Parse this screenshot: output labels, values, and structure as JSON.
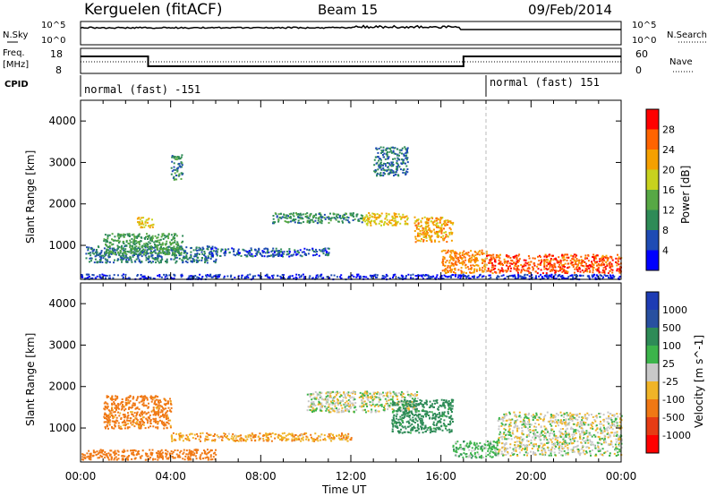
{
  "header": {
    "station": "Kerguelen (fitACF)",
    "beam": "Beam 15",
    "date": "09/Feb/2014"
  },
  "strip_noise": {
    "left_label": "N.Sky",
    "right_label": "N.Search",
    "left_ticks": [
      "10^5",
      "10^0"
    ],
    "right_ticks": [
      "10^5",
      "10^0"
    ]
  },
  "strip_freq": {
    "left_label_1": "Freq.",
    "left_label_2": "[MHz]",
    "right_label": "Nave",
    "left_ticks": [
      "18",
      "8"
    ],
    "right_ticks": [
      "60",
      "0"
    ]
  },
  "cpid": {
    "label": "CPID",
    "segment_1": "normal (fast) -151",
    "segment_2": "normal (fast) 151",
    "switch_hour": 18
  },
  "chart_data": [
    {
      "type": "heatmap",
      "panel": "power",
      "ylabel": "Slant Range [km]",
      "yticks": [
        "1000",
        "2000",
        "3000",
        "4000"
      ],
      "ylim": [
        180,
        4500
      ],
      "xlim": [
        0,
        24
      ],
      "xlabel": "Time UT",
      "xticks": [
        "00:00",
        "04:00",
        "08:00",
        "12:00",
        "16:00",
        "20:00",
        "00:00"
      ],
      "colorbar": {
        "label": "Power [dB]",
        "ticks": [
          "4",
          "8",
          "12",
          "16",
          "20",
          "24",
          "28"
        ],
        "colors": [
          "#0000ff",
          "#1e4bb4",
          "#2e8b57",
          "#57a845",
          "#c8d21e",
          "#f5a000",
          "#ff6400",
          "#ff0000"
        ]
      },
      "regions": [
        {
          "t0": 0.0,
          "t1": 24.0,
          "r0": 200,
          "r1": 320,
          "value": 4
        },
        {
          "t0": 0.2,
          "t1": 6.0,
          "r0": 600,
          "r1": 1000,
          "value": 8
        },
        {
          "t0": 1.0,
          "t1": 4.5,
          "r0": 800,
          "r1": 1300,
          "value": 12
        },
        {
          "t0": 2.5,
          "t1": 3.2,
          "r0": 1450,
          "r1": 1700,
          "value": 20
        },
        {
          "t0": 5.5,
          "t1": 11.0,
          "r0": 750,
          "r1": 950,
          "value": 6
        },
        {
          "t0": 8.5,
          "t1": 12.5,
          "r0": 1550,
          "r1": 1800,
          "value": 10
        },
        {
          "t0": 12.5,
          "t1": 14.5,
          "r0": 1500,
          "r1": 1800,
          "value": 20
        },
        {
          "t0": 14.8,
          "t1": 16.5,
          "r0": 1100,
          "r1": 1700,
          "value": 22
        },
        {
          "t0": 16.0,
          "t1": 18.0,
          "r0": 350,
          "r1": 900,
          "value": 24
        },
        {
          "t0": 18.0,
          "t1": 24.0,
          "r0": 350,
          "r1": 800,
          "value": 27
        },
        {
          "t0": 4.0,
          "t1": 4.5,
          "r0": 2600,
          "r1": 3200,
          "value": 10
        },
        {
          "t0": 13.0,
          "t1": 14.5,
          "r0": 2700,
          "r1": 3400,
          "value": 8
        }
      ]
    },
    {
      "type": "heatmap",
      "panel": "velocity",
      "ylabel": "Slant Range [km]",
      "yticks": [
        "1000",
        "2000",
        "3000",
        "4000"
      ],
      "ylim": [
        180,
        4500
      ],
      "xlim": [
        0,
        24
      ],
      "xlabel": "Time UT",
      "xticks": [
        "00:00",
        "04:00",
        "08:00",
        "12:00",
        "16:00",
        "20:00",
        "00:00"
      ],
      "colorbar": {
        "label": "Velocity [m s^-1]",
        "ticks": [
          "1000",
          "500",
          "100",
          "25",
          "-25",
          "-100",
          "-500",
          "-1000"
        ],
        "colors": [
          "#1e3cb4",
          "#2850a0",
          "#2e8b57",
          "#3cb44b",
          "#c8c8c8",
          "#f0b428",
          "#f07814",
          "#e63c14",
          "#ff0000"
        ]
      },
      "regions": [
        {
          "t0": 0.0,
          "t1": 6.0,
          "r0": 250,
          "r1": 500,
          "value": -200
        },
        {
          "t0": 1.0,
          "t1": 4.0,
          "r0": 1000,
          "r1": 1800,
          "value": -150
        },
        {
          "t0": 4.0,
          "t1": 12.0,
          "r0": 700,
          "r1": 900,
          "value": -80
        },
        {
          "t0": 10.0,
          "t1": 15.0,
          "r0": 1400,
          "r1": 1900,
          "value": 0
        },
        {
          "t0": 13.8,
          "t1": 16.5,
          "r0": 900,
          "r1": 1700,
          "value": 150
        },
        {
          "t0": 16.5,
          "t1": 18.5,
          "r0": 300,
          "r1": 700,
          "value": 60
        },
        {
          "t0": 18.5,
          "t1": 24.0,
          "r0": 350,
          "r1": 1400,
          "value": 0
        }
      ]
    }
  ]
}
